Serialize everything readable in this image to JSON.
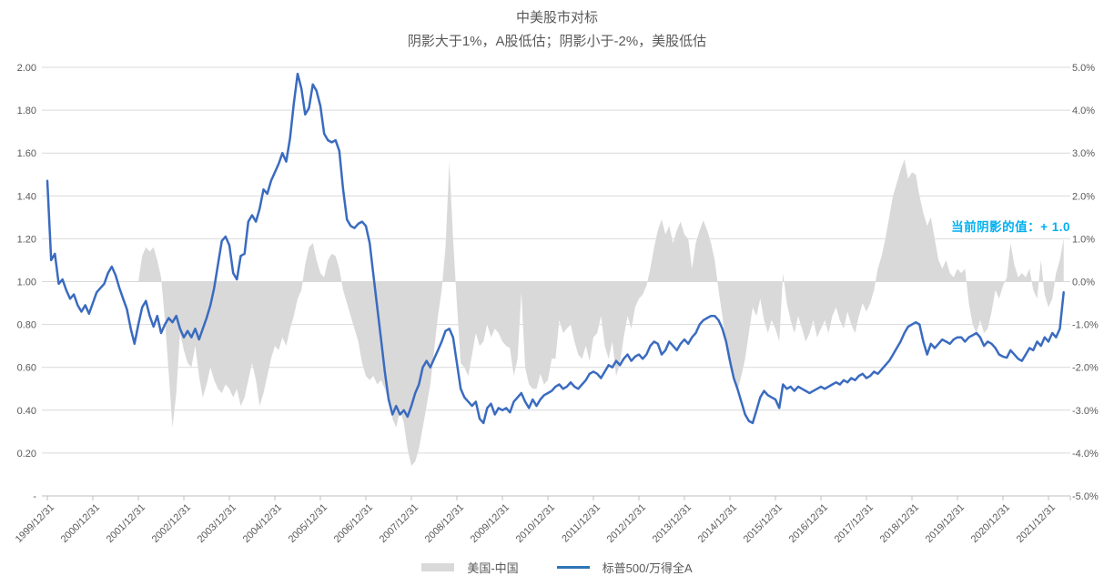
{
  "chart": {
    "title": "中美股市对标",
    "subtitle": "阴影大于1%，A股低估；阴影小于-2%，美股低估",
    "annotation": {
      "text": "当前阴影的值：+ 1.0",
      "color": "#00b0f0",
      "value": 1.0
    },
    "series_meta": {
      "area_name": "美国-中国",
      "area_color": "#d9d9d9",
      "line_name": "标普500/万得全A",
      "line_color": "#3a6bbf"
    }
  },
  "chart_data": {
    "type": "combo-line-area",
    "title": "中美股市对标",
    "subtitle": "阴影大于1%，A股低估；阴影小于-2%，美股低估",
    "frequency": "monthly",
    "start_date": "1999/12/31",
    "end_date": "2022/04",
    "grid": "horizontal-only",
    "legend_position": "bottom-center",
    "left_axis": {
      "min": 0,
      "max": 2,
      "ticks": [
        "2.00",
        "1.80",
        "1.60",
        "1.40",
        "1.20",
        "1.00",
        "0.80",
        "0.60",
        "0.40",
        "0.20",
        "-"
      ]
    },
    "right_axis": {
      "min": -5,
      "max": 5,
      "ticks": [
        "5.0%",
        "4.0%",
        "3.0%",
        "2.0%",
        "1.0%",
        "0.0%",
        "-1.0%",
        "-2.0%",
        "-3.0%",
        "-4.0%",
        "-5.0%"
      ]
    },
    "x_ticks": [
      "1999/12/31",
      "2000/12/31",
      "2001/12/31",
      "2002/12/31",
      "2003/12/31",
      "2004/12/31",
      "2005/12/31",
      "2006/12/31",
      "2007/12/31",
      "2008/12/31",
      "2009/12/31",
      "2010/12/31",
      "2011/12/31",
      "2012/12/31",
      "2013/12/31",
      "2014/12/31",
      "2015/12/31",
      "2016/12/31",
      "2017/12/31",
      "2018/12/31",
      "2019/12/31",
      "2020/12/31",
      "2021/12/31"
    ],
    "series": [
      {
        "name": "美国-中国",
        "type": "area",
        "axis": "right",
        "color": "#d9d9d9",
        "values": [
          0,
          0,
          0,
          0,
          0,
          0,
          0,
          0,
          0,
          0,
          0,
          0,
          0,
          0,
          0,
          0,
          0,
          0,
          0,
          0,
          0,
          0,
          0,
          0,
          0,
          0.6,
          0.8,
          0.7,
          0.8,
          0.5,
          0.1,
          -0.9,
          -2.1,
          -3.4,
          -2.6,
          -1.2,
          -1.6,
          -1.9,
          -2.0,
          -1.5,
          -2.2,
          -2.7,
          -2.4,
          -2.0,
          -2.3,
          -2.5,
          -2.6,
          -2.4,
          -2.5,
          -2.7,
          -2.5,
          -2.9,
          -2.7,
          -2.3,
          -1.9,
          -2.3,
          -2.9,
          -2.6,
          -2.2,
          -1.8,
          -1.5,
          -1.6,
          -1.3,
          -1.5,
          -1.1,
          -0.8,
          -0.4,
          -0.2,
          0.4,
          0.8,
          0.9,
          0.5,
          0.2,
          0.1,
          0.5,
          0.65,
          0.6,
          0.3,
          -0.2,
          -0.5,
          -0.8,
          -1.1,
          -1.4,
          -1.9,
          -2.2,
          -2.3,
          -2.2,
          -2.4,
          -2.3,
          -2.5,
          -2.8,
          -3.2,
          -3.4,
          -3.0,
          -3.3,
          -3.9,
          -4.3,
          -4.2,
          -3.9,
          -3.4,
          -2.9,
          -2.4,
          -1.6,
          -0.8,
          -0.2,
          0.8,
          2.8,
          1.0,
          -0.5,
          -1.9,
          -2.0,
          -2.2,
          -1.7,
          -1.2,
          -1.5,
          -1.4,
          -1.0,
          -1.3,
          -1.1,
          -1.2,
          -1.4,
          -1.5,
          -1.55,
          -2.2,
          -1.8,
          -0.25,
          -2.0,
          -2.4,
          -2.5,
          -2.5,
          -2.15,
          -2.4,
          -2.3,
          -1.8,
          -1.8,
          -0.9,
          -1.2,
          -1.1,
          -1.0,
          -1.4,
          -1.7,
          -1.8,
          -1.5,
          -1.85,
          -1.3,
          -1.2,
          -0.8,
          -1.5,
          -1.8,
          -1.4,
          -2.2,
          -1.9,
          -1.3,
          -0.8,
          -1.1,
          -0.6,
          -0.4,
          -0.3,
          -0.1,
          0.3,
          0.8,
          1.2,
          1.45,
          1.1,
          1.3,
          0.9,
          1.2,
          1.4,
          1.1,
          1.0,
          0.3,
          0.9,
          1.2,
          1.43,
          1.2,
          0.9,
          0.5,
          -0.2,
          -0.8,
          -1.5,
          -2.0,
          -2.3,
          -2.56,
          -2.2,
          -1.8,
          -1.2,
          -0.6,
          -0.8,
          -0.4,
          -0.9,
          -1.2,
          -0.9,
          -1.1,
          -1.4,
          0.2,
          -0.5,
          -0.9,
          -1.2,
          -0.8,
          -1.1,
          -1.4,
          -1.2,
          -0.9,
          -1.3,
          -1.1,
          -0.9,
          -1.2,
          -0.8,
          -0.6,
          -0.9,
          -1.1,
          -0.7,
          -1.0,
          -1.2,
          -0.8,
          -0.5,
          -0.7,
          -0.5,
          -0.2,
          0.3,
          0.6,
          1.0,
          1.5,
          2.0,
          2.3,
          2.6,
          2.85,
          2.4,
          2.55,
          2.5,
          2.0,
          1.6,
          1.3,
          1.5,
          1.0,
          0.5,
          0.3,
          0.5,
          0.2,
          0.1,
          0.3,
          0.2,
          0.3,
          -0.5,
          -1.0,
          -1.2,
          -0.9,
          -1.2,
          -1.1,
          -0.7,
          -0.2,
          -0.4,
          -0.1,
          0.1,
          0.9,
          0.4,
          0.1,
          0.2,
          0.1,
          0.3,
          -0.2,
          -0.4,
          0.5,
          -0.3,
          -0.6,
          -0.4,
          0.2,
          0.5,
          1.0
        ]
      },
      {
        "name": "标普500/万得全A",
        "type": "line",
        "axis": "left",
        "color": "#3a6bbf",
        "values": [
          1.47,
          1.1,
          1.13,
          0.99,
          1.01,
          0.96,
          0.92,
          0.94,
          0.89,
          0.86,
          0.89,
          0.85,
          0.9,
          0.95,
          0.97,
          0.99,
          1.04,
          1.07,
          1.03,
          0.97,
          0.92,
          0.87,
          0.78,
          0.71,
          0.8,
          0.88,
          0.91,
          0.84,
          0.79,
          0.84,
          0.76,
          0.8,
          0.83,
          0.81,
          0.84,
          0.78,
          0.74,
          0.77,
          0.74,
          0.78,
          0.73,
          0.78,
          0.83,
          0.89,
          0.97,
          1.08,
          1.19,
          1.21,
          1.17,
          1.04,
          1.01,
          1.12,
          1.13,
          1.28,
          1.31,
          1.28,
          1.34,
          1.43,
          1.41,
          1.47,
          1.51,
          1.55,
          1.6,
          1.56,
          1.67,
          1.83,
          1.97,
          1.9,
          1.78,
          1.81,
          1.92,
          1.89,
          1.82,
          1.69,
          1.66,
          1.65,
          1.66,
          1.61,
          1.43,
          1.29,
          1.26,
          1.25,
          1.27,
          1.28,
          1.26,
          1.18,
          1.03,
          0.88,
          0.73,
          0.58,
          0.45,
          0.38,
          0.42,
          0.38,
          0.4,
          0.37,
          0.42,
          0.48,
          0.52,
          0.6,
          0.63,
          0.6,
          0.64,
          0.68,
          0.72,
          0.77,
          0.78,
          0.74,
          0.62,
          0.5,
          0.46,
          0.44,
          0.42,
          0.44,
          0.36,
          0.34,
          0.41,
          0.43,
          0.38,
          0.41,
          0.4,
          0.41,
          0.39,
          0.44,
          0.46,
          0.48,
          0.44,
          0.41,
          0.45,
          0.42,
          0.45,
          0.47,
          0.48,
          0.49,
          0.51,
          0.52,
          0.5,
          0.51,
          0.53,
          0.51,
          0.5,
          0.52,
          0.54,
          0.57,
          0.58,
          0.57,
          0.55,
          0.58,
          0.61,
          0.6,
          0.63,
          0.61,
          0.64,
          0.66,
          0.63,
          0.65,
          0.66,
          0.64,
          0.66,
          0.7,
          0.72,
          0.71,
          0.66,
          0.68,
          0.72,
          0.7,
          0.68,
          0.71,
          0.73,
          0.71,
          0.74,
          0.76,
          0.8,
          0.82,
          0.83,
          0.84,
          0.84,
          0.82,
          0.78,
          0.72,
          0.63,
          0.55,
          0.5,
          0.44,
          0.38,
          0.35,
          0.34,
          0.4,
          0.46,
          0.49,
          0.47,
          0.46,
          0.45,
          0.41,
          0.52,
          0.5,
          0.51,
          0.49,
          0.51,
          0.5,
          0.49,
          0.48,
          0.49,
          0.5,
          0.51,
          0.5,
          0.51,
          0.52,
          0.53,
          0.52,
          0.54,
          0.53,
          0.55,
          0.54,
          0.56,
          0.57,
          0.55,
          0.56,
          0.58,
          0.57,
          0.59,
          0.61,
          0.63,
          0.66,
          0.69,
          0.72,
          0.76,
          0.79,
          0.8,
          0.81,
          0.8,
          0.72,
          0.66,
          0.71,
          0.69,
          0.71,
          0.73,
          0.72,
          0.71,
          0.73,
          0.74,
          0.74,
          0.72,
          0.74,
          0.75,
          0.76,
          0.74,
          0.7,
          0.72,
          0.71,
          0.69,
          0.66,
          0.65,
          0.645,
          0.68,
          0.66,
          0.64,
          0.63,
          0.66,
          0.69,
          0.68,
          0.72,
          0.7,
          0.74,
          0.72,
          0.76,
          0.74,
          0.78,
          0.95
        ]
      }
    ],
    "annotation": {
      "text": "当前阴影的值：+ 1.0",
      "color": "#00b0f0"
    }
  }
}
